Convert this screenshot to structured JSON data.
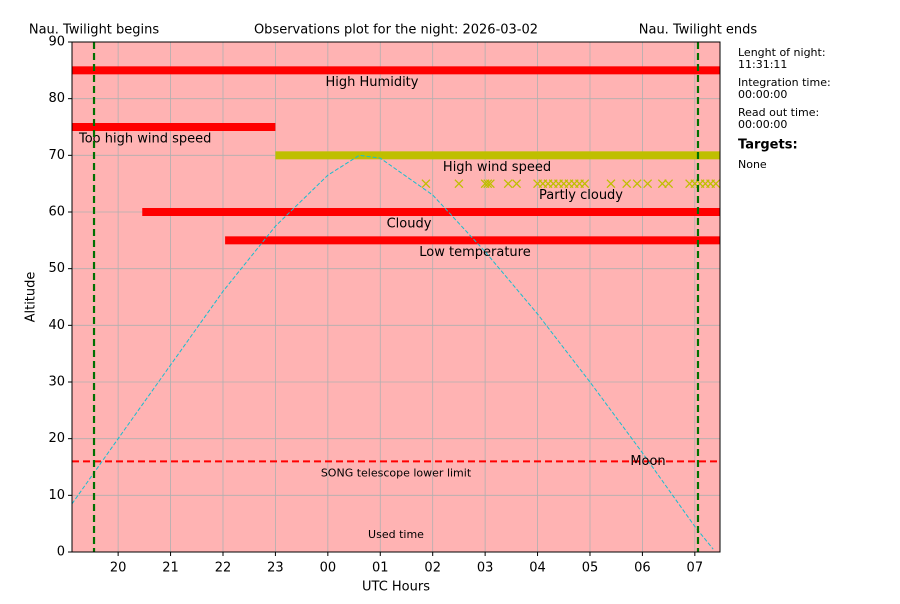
{
  "chart_data": {
    "type": "timeline",
    "title": "Observations plot for the night: 2026-03-02",
    "xlabel": "UTC Hours",
    "ylabel": "Altitude",
    "xlim": [
      19.12,
      31.48
    ],
    "ylim": [
      0,
      90
    ],
    "xticks": [
      20,
      21,
      22,
      23,
      {
        "value": 24,
        "label": "00"
      },
      {
        "value": 25,
        "label": "01"
      },
      {
        "value": 26,
        "label": "02"
      },
      {
        "value": 27,
        "label": "03"
      },
      {
        "value": 28,
        "label": "04"
      },
      {
        "value": 29,
        "label": "05"
      },
      {
        "value": 30,
        "label": "06"
      },
      {
        "value": 31,
        "label": "07"
      }
    ],
    "yticks": [
      0,
      10,
      20,
      30,
      40,
      50,
      60,
      70,
      80,
      90
    ],
    "grid": true,
    "background": "#ffb3b3",
    "conditions": [
      {
        "name": "High Humidity",
        "color": "#ff0000",
        "y": 85,
        "start": 19.12,
        "end": 31.48
      },
      {
        "name": "Too high wind speed",
        "color": "#ff0000",
        "y": 75,
        "start": 19.12,
        "end": 23.0
      },
      {
        "name": "High wind speed",
        "color": "#bfbf00",
        "y": 70,
        "start": 23.0,
        "end": 31.48
      },
      {
        "name": "Partly cloudy",
        "color": "#bfbf00",
        "y": 65,
        "times": [
          25.87,
          26.5,
          27.0,
          27.05,
          27.1,
          27.44,
          27.6,
          28.0,
          28.1,
          28.2,
          28.3,
          28.4,
          28.5,
          28.6,
          28.7,
          28.8,
          28.9,
          29.4,
          29.7,
          29.9,
          30.1,
          30.38,
          30.5,
          30.9,
          31.0,
          31.1,
          31.2,
          31.3,
          31.4
        ]
      },
      {
        "name": "Cloudy",
        "color": "#ff0000",
        "y": 60,
        "start": 20.46,
        "end": 31.48
      },
      {
        "name": "Low temperature",
        "color": "#ff0000",
        "y": 55,
        "start": 22.04,
        "end": 31.48
      }
    ],
    "moon": {
      "name": "Moon",
      "color": "#17becf",
      "x": [
        19.12,
        20,
        21,
        22,
        23,
        24,
        24.6,
        25,
        26,
        27,
        28,
        29,
        30,
        31,
        31.35
      ],
      "values": [
        8.5,
        20,
        33,
        46,
        57.5,
        66.5,
        70,
        69.5,
        63,
        53,
        42,
        30,
        17.5,
        4.5,
        0.5
      ]
    },
    "limit": {
      "name": "SONG telescope lower limit",
      "value": 16,
      "color": "#ff0000"
    },
    "twilight": [
      {
        "label": "Nau. Twilight begins",
        "x": 19.54
      },
      {
        "label": "Nau. Twilight ends",
        "x": 31.06
      }
    ],
    "twilight_color": "#007000",
    "used_time_label": "Used time"
  },
  "info": [
    {
      "label": "Lenght of night:",
      "value": "11:31:11"
    },
    {
      "label": "Integration time:",
      "value": "00:00:00"
    },
    {
      "label": "Read out time:",
      "value": "00:00:00"
    }
  ],
  "targets": {
    "heading": "Targets:",
    "value": "None"
  }
}
